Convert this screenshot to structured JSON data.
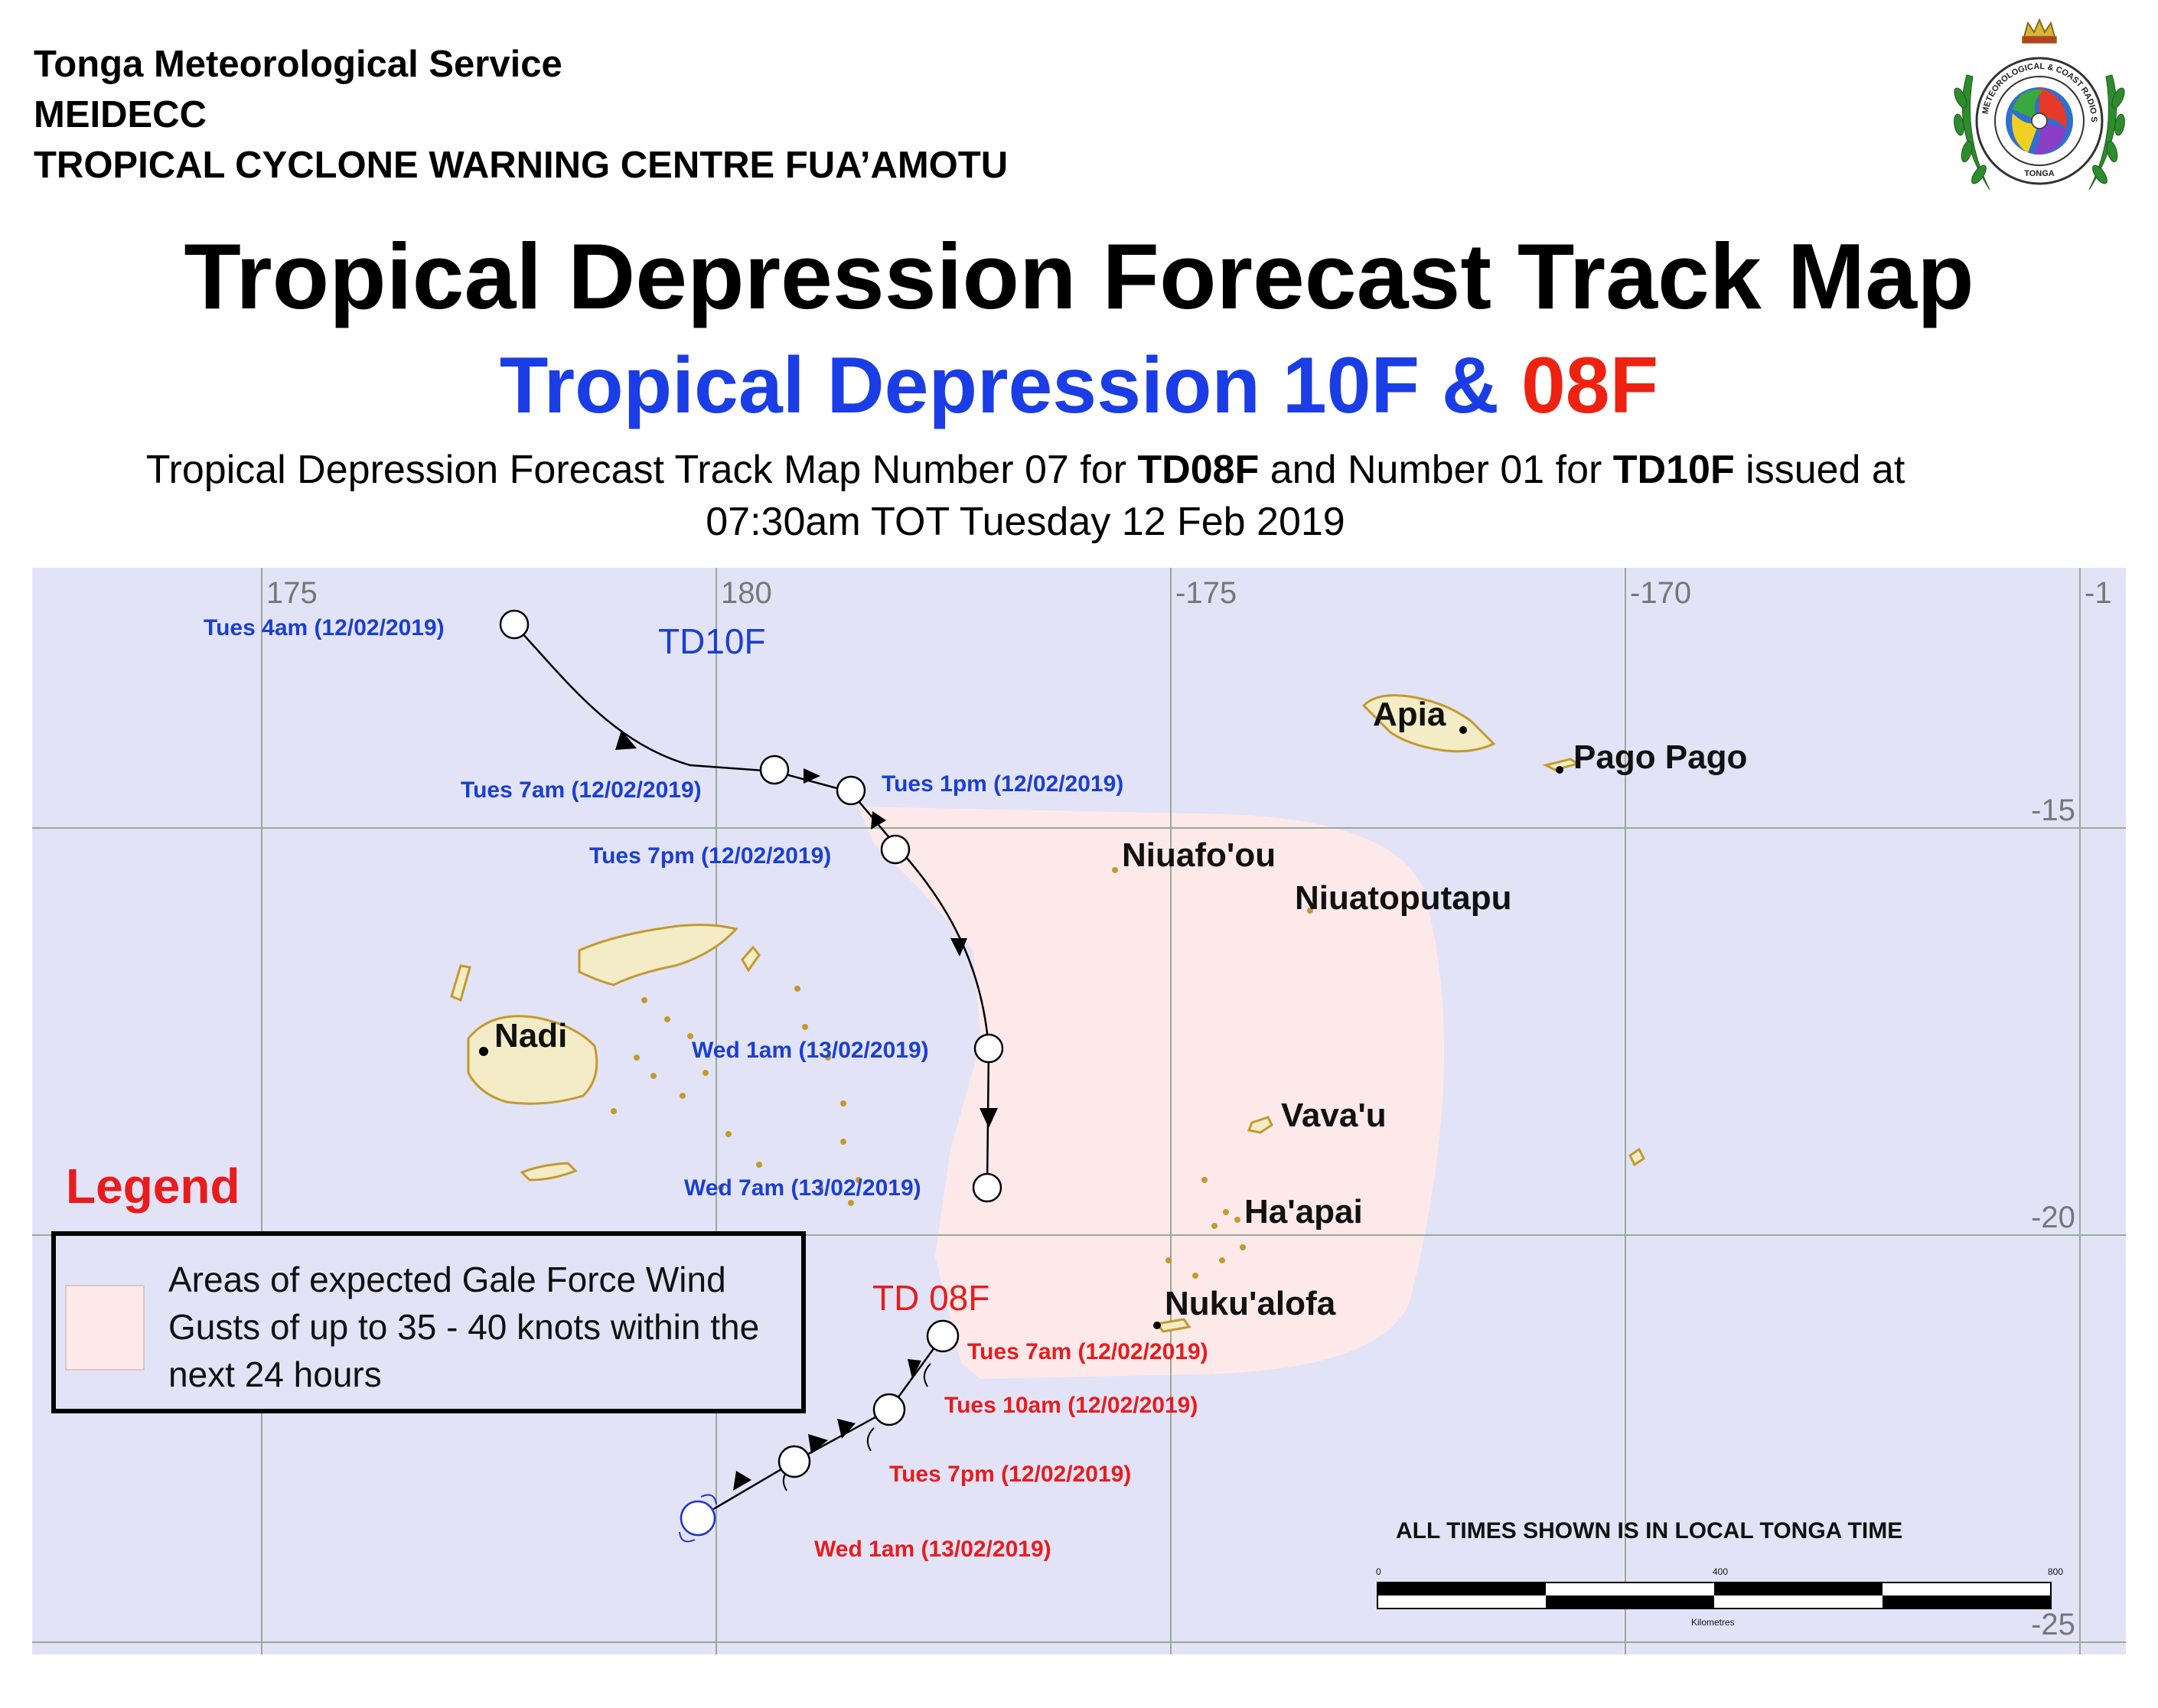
{
  "header": {
    "line1": "Tonga Meteorological Service",
    "line2": "MEIDECC",
    "line3": "TROPICAL CYCLONE WARNING CENTRE FUA’AMOTU"
  },
  "logo": {
    "ring_text": "METEOROLOGICAL & COAST RADIO SERVICES",
    "bottom_text": "TONGA"
  },
  "title": "Tropical Depression Forecast Track Map",
  "subtitle": {
    "part1": "Tropical Depression 10F & ",
    "part2": "08F"
  },
  "issue": {
    "prefix": "Tropical Depression Forecast Track Map Number 07 for ",
    "td08": "TD08F",
    "middle": " and Number 01 for ",
    "td10": "TD10F",
    "suffix": " issued at",
    "line2": "07:30am TOT Tuesday 12 Feb 2019"
  },
  "colors": {
    "ocean": "#e3e3f7",
    "gale_area": "#fde9ea",
    "land": "#f3ecc6",
    "land_outline": "#c29a2e",
    "td10_label": "#1a3fd0",
    "td08_label": "#e81c1c",
    "track_line": "#000000"
  },
  "map": {
    "grid_lon_labels": [
      "175",
      "180",
      "-175",
      "-170",
      "-1"
    ],
    "grid_lat_labels": [
      "-15",
      "-20",
      "-25"
    ],
    "td10_name": "TD10F",
    "td08_name": "TD 08F",
    "td10_track": [
      {
        "label": "Tues 4am (12/02/2019)"
      },
      {
        "label": "Tues 7am (12/02/2019)"
      },
      {
        "label": "Tues 1pm (12/02/2019)"
      },
      {
        "label": "Tues 7pm (12/02/2019)"
      },
      {
        "label": "Wed 1am (13/02/2019)"
      },
      {
        "label": "Wed 7am (13/02/2019)"
      }
    ],
    "td08_track": [
      {
        "label": "Tues 7am (12/02/2019)"
      },
      {
        "label": "Tues 10am (12/02/2019)"
      },
      {
        "label": "Tues 7pm (12/02/2019)"
      },
      {
        "label": "Wed 1am (13/02/2019)"
      }
    ],
    "places": [
      "Apia",
      "Pago Pago",
      "Niuafo'ou",
      "Niuatoputapu",
      "Nadi",
      "Vava'u",
      "Ha'apai",
      "Nuku'alofa"
    ],
    "legend_title": "Legend",
    "legend_text": [
      "Areas of expected Gale Force Wind",
      "Gusts of up to 35 - 40 knots within the",
      "next 24 hours"
    ],
    "times_note": "ALL TIMES SHOWN IS IN LOCAL TONGA TIME",
    "scale_labels": [
      "0",
      "400",
      "800"
    ],
    "scale_unit": "Kilometres"
  }
}
